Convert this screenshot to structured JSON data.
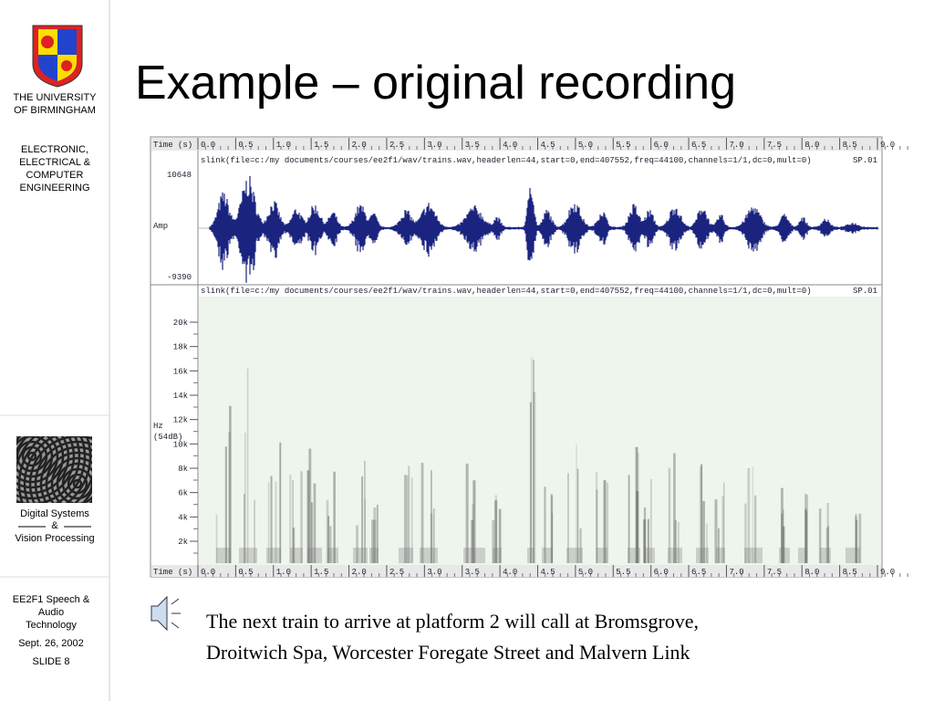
{
  "sidebar": {
    "university": [
      "THE UNIVERSITY",
      "OF BIRMINGHAM"
    ],
    "department": [
      "ELECTRONIC,",
      "ELECTRICAL &",
      "COMPUTER",
      "ENGINEERING"
    ],
    "group": [
      "Digital Systems",
      "&",
      "Vision Processing"
    ],
    "course": [
      "EE2F1 Speech &",
      "Audio",
      "Technology"
    ],
    "date": "Sept. 26, 2002",
    "slide": "SLIDE 8"
  },
  "title": "Example – original recording",
  "figure": {
    "time_label": "Time (s)",
    "time_ticks": [
      "0.0",
      "0.5",
      "1.0",
      "1.5",
      "2.0",
      "2.5",
      "3.0",
      "3.5",
      "4.0",
      "4.5",
      "5.0",
      "5.5",
      "6.0",
      "6.5",
      "7.0",
      "7.5",
      "8.0",
      "8.5",
      "9.0"
    ],
    "waveform": {
      "info": "slink(file=c:/my documents/courses/ee2f1/wav/trains.wav,headerlen=44,start=0,end=407552,freq=44100,channels=1/1,dc=0,mult=0)",
      "id": "SP.01",
      "amp_label": "Amp",
      "max": "10648",
      "min": "-9390"
    },
    "spectrogram": {
      "info": "slink(file=c:/my documents/courses/ee2f1/wav/trains.wav,headerlen=44,start=0,end=407552,freq=44100,channels=1/1,dc=0,mult=0)",
      "id": "SP.01",
      "unit": "Hz",
      "range": "(54dB)",
      "freq_ticks": [
        "20k",
        "18k",
        "16k",
        "14k",
        "12k",
        "10k",
        "8k",
        "6k",
        "4k",
        "2k"
      ]
    }
  },
  "caption": [
    "The next train to arrive at platform 2 will call at Bromsgrove,",
    "Droitwich Spa, Worcester Foregate Street and Malvern Link"
  ]
}
